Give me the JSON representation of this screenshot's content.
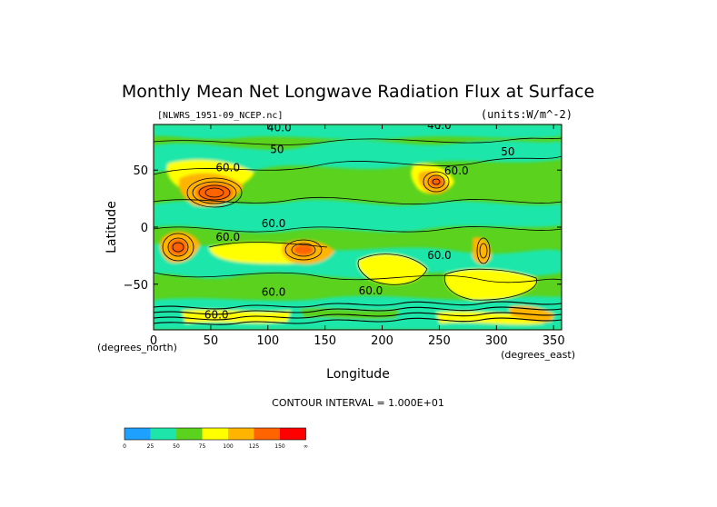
{
  "chart_data": {
    "type": "heatmap",
    "title": "Monthly Mean Net Longwave Radiation Flux at Surface",
    "file_label": "[NLWRS_1951-09_NCEP.nc]",
    "units_label": "(units:W/m^-2)",
    "xlabel": "Longitude",
    "ylabel": "Latitude",
    "x_unit_label": "(degrees_east)",
    "y_unit_label": "(degrees_north)",
    "xlim": [
      0,
      357
    ],
    "ylim": [
      -90,
      90
    ],
    "x_ticks": [
      0,
      50,
      100,
      150,
      200,
      250,
      300,
      350
    ],
    "y_ticks": [
      50,
      0,
      -50
    ],
    "contour_interval_label": "CONTOUR INTERVAL = 1.000E+01",
    "color_levels": [
      {
        "label": "0",
        "color": "#1ea0ff"
      },
      {
        "label": "25",
        "color": "#1ee6aa"
      },
      {
        "label": "50",
        "color": "#5ad21e"
      },
      {
        "label": "75",
        "color": "#ffff00"
      },
      {
        "label": "100",
        "color": "#ffb400"
      },
      {
        "label": "125",
        "color": "#ff6400"
      },
      {
        "label": "150",
        "color": "#ff0000"
      },
      {
        "label": "∞",
        "color": ""
      }
    ],
    "contour_labels": [
      {
        "text": "40.0",
        "lon": 110,
        "lat": 84
      },
      {
        "text": "40.0",
        "lon": 250,
        "lat": 86
      },
      {
        "text": "50",
        "lon": 108,
        "lat": 65
      },
      {
        "text": "60.0",
        "lon": 65,
        "lat": 49
      },
      {
        "text": "60.0",
        "lon": 265,
        "lat": 46
      },
      {
        "text": "50",
        "lon": 310,
        "lat": 63
      },
      {
        "text": "60.0",
        "lon": 105,
        "lat": 0
      },
      {
        "text": "60.0",
        "lon": 65,
        "lat": -12
      },
      {
        "text": "60.0",
        "lon": 250,
        "lat": -28
      },
      {
        "text": "60.0",
        "lon": 105,
        "lat": -60
      },
      {
        "text": "60.0",
        "lon": 190,
        "lat": -59
      },
      {
        "text": "60.0",
        "lon": 55,
        "lat": -80
      }
    ]
  }
}
